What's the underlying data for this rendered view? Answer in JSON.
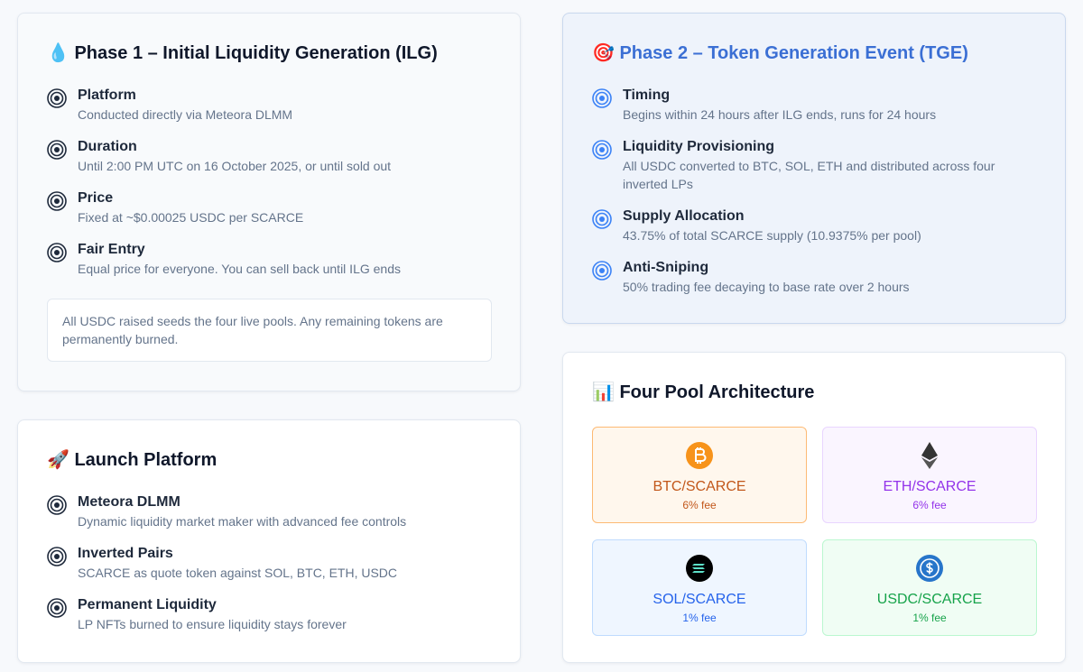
{
  "phase1": {
    "title": "💧 Phase 1 – Initial Liquidity Generation (ILG)",
    "items": [
      {
        "title": "Platform",
        "text": "Conducted directly via Meteora DLMM"
      },
      {
        "title": "Duration",
        "text": "Until 2:00 PM UTC on 16 October 2025, or until sold out"
      },
      {
        "title": "Price",
        "text": "Fixed at ~$0.00025 USDC per SCARCE"
      },
      {
        "title": "Fair Entry",
        "text": "Equal price for everyone. You can sell back until ILG ends"
      }
    ],
    "note": "All USDC raised seeds the four live pools. Any remaining tokens are permanently burned."
  },
  "launch_platform": {
    "title": "🚀 Launch Platform",
    "items": [
      {
        "title": "Meteora DLMM",
        "text": "Dynamic liquidity market maker with advanced fee controls"
      },
      {
        "title": "Inverted Pairs",
        "text": "SCARCE as quote token against SOL, BTC, ETH, USDC"
      },
      {
        "title": "Permanent Liquidity",
        "text": "LP NFTs burned to ensure liquidity stays forever"
      }
    ]
  },
  "phase2": {
    "title": "🎯 Phase 2 – Token Generation Event (TGE)",
    "items": [
      {
        "title": "Timing",
        "text": "Begins within 24 hours after ILG ends, runs for 24 hours"
      },
      {
        "title": "Liquidity Provisioning",
        "text": "All USDC converted to BTC, SOL, ETH and distributed across four inverted LPs"
      },
      {
        "title": "Supply Allocation",
        "text": "43.75% of total SCARCE supply (10.9375% per pool)"
      },
      {
        "title": "Anti-Sniping",
        "text": "50% trading fee decaying to base rate over 2 hours"
      }
    ]
  },
  "pools": {
    "title": "📊 Four Pool Architecture",
    "items": [
      {
        "pair": "BTC/SCARCE",
        "fee": "6% fee"
      },
      {
        "pair": "ETH/SCARCE",
        "fee": "6% fee"
      },
      {
        "pair": "SOL/SCARCE",
        "fee": "1% fee"
      },
      {
        "pair": "USDC/SCARCE",
        "fee": "1% fee"
      }
    ]
  }
}
